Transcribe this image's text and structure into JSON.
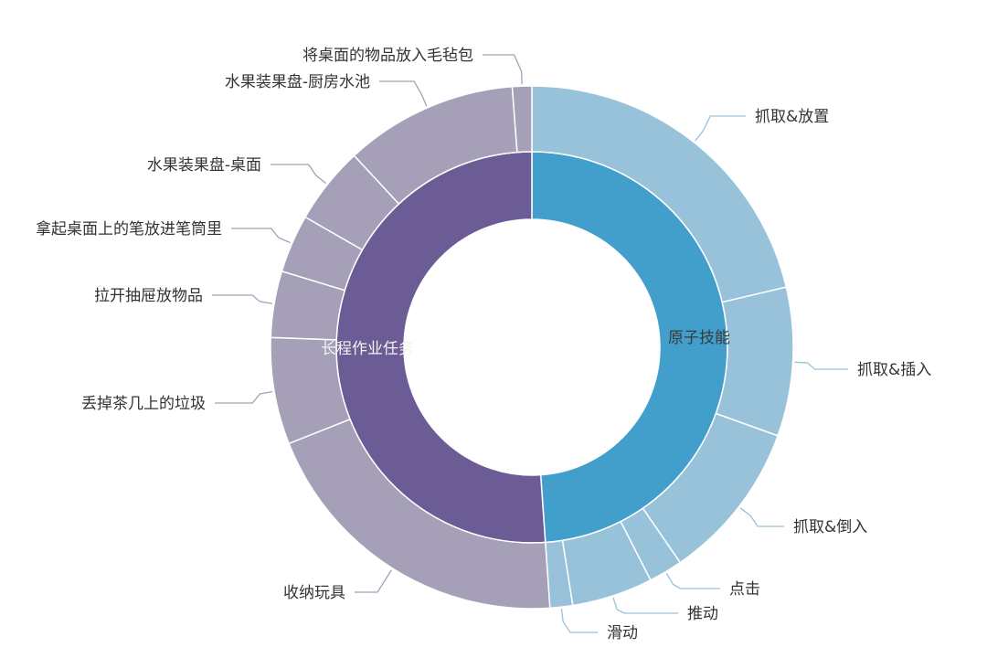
{
  "chart_data": {
    "type": "sunburst",
    "title": "",
    "unit": "percent",
    "colors": {
      "inner": [
        "#429fcb",
        "#6b5c95"
      ],
      "outer": [
        "#97c2da",
        "#a59fb7"
      ],
      "inner_label": [
        "#3a3a3a",
        "#f2f2f2"
      ]
    },
    "series": [
      {
        "name": "原子技能",
        "value": 48.9,
        "children": [
          {
            "name": "抓取&放置",
            "value": 21.3
          },
          {
            "name": "抓取&插入",
            "value": 9.2
          },
          {
            "name": "抓取&倒入",
            "value": 9.9
          },
          {
            "name": "点击",
            "value": 2.1
          },
          {
            "name": "推动",
            "value": 5.0
          },
          {
            "name": "滑动",
            "value": 1.4
          }
        ]
      },
      {
        "name": "长程作业任务",
        "value": 51.1,
        "children": [
          {
            "name": "收纳玩具",
            "value": 20.1
          },
          {
            "name": "丢掉茶几上的垃圾",
            "value": 6.6
          },
          {
            "name": "拉开抽屉放物品",
            "value": 4.1
          },
          {
            "name": "拿起桌面上的笔放进笔筒里",
            "value": 3.6
          },
          {
            "name": "水果装果盘-桌面",
            "value": 4.8
          },
          {
            "name": "水果装果盘-厨房水池",
            "value": 10.7
          },
          {
            "name": "将桌面的物品放入毛毡包",
            "value": 1.2
          }
        ]
      }
    ]
  }
}
